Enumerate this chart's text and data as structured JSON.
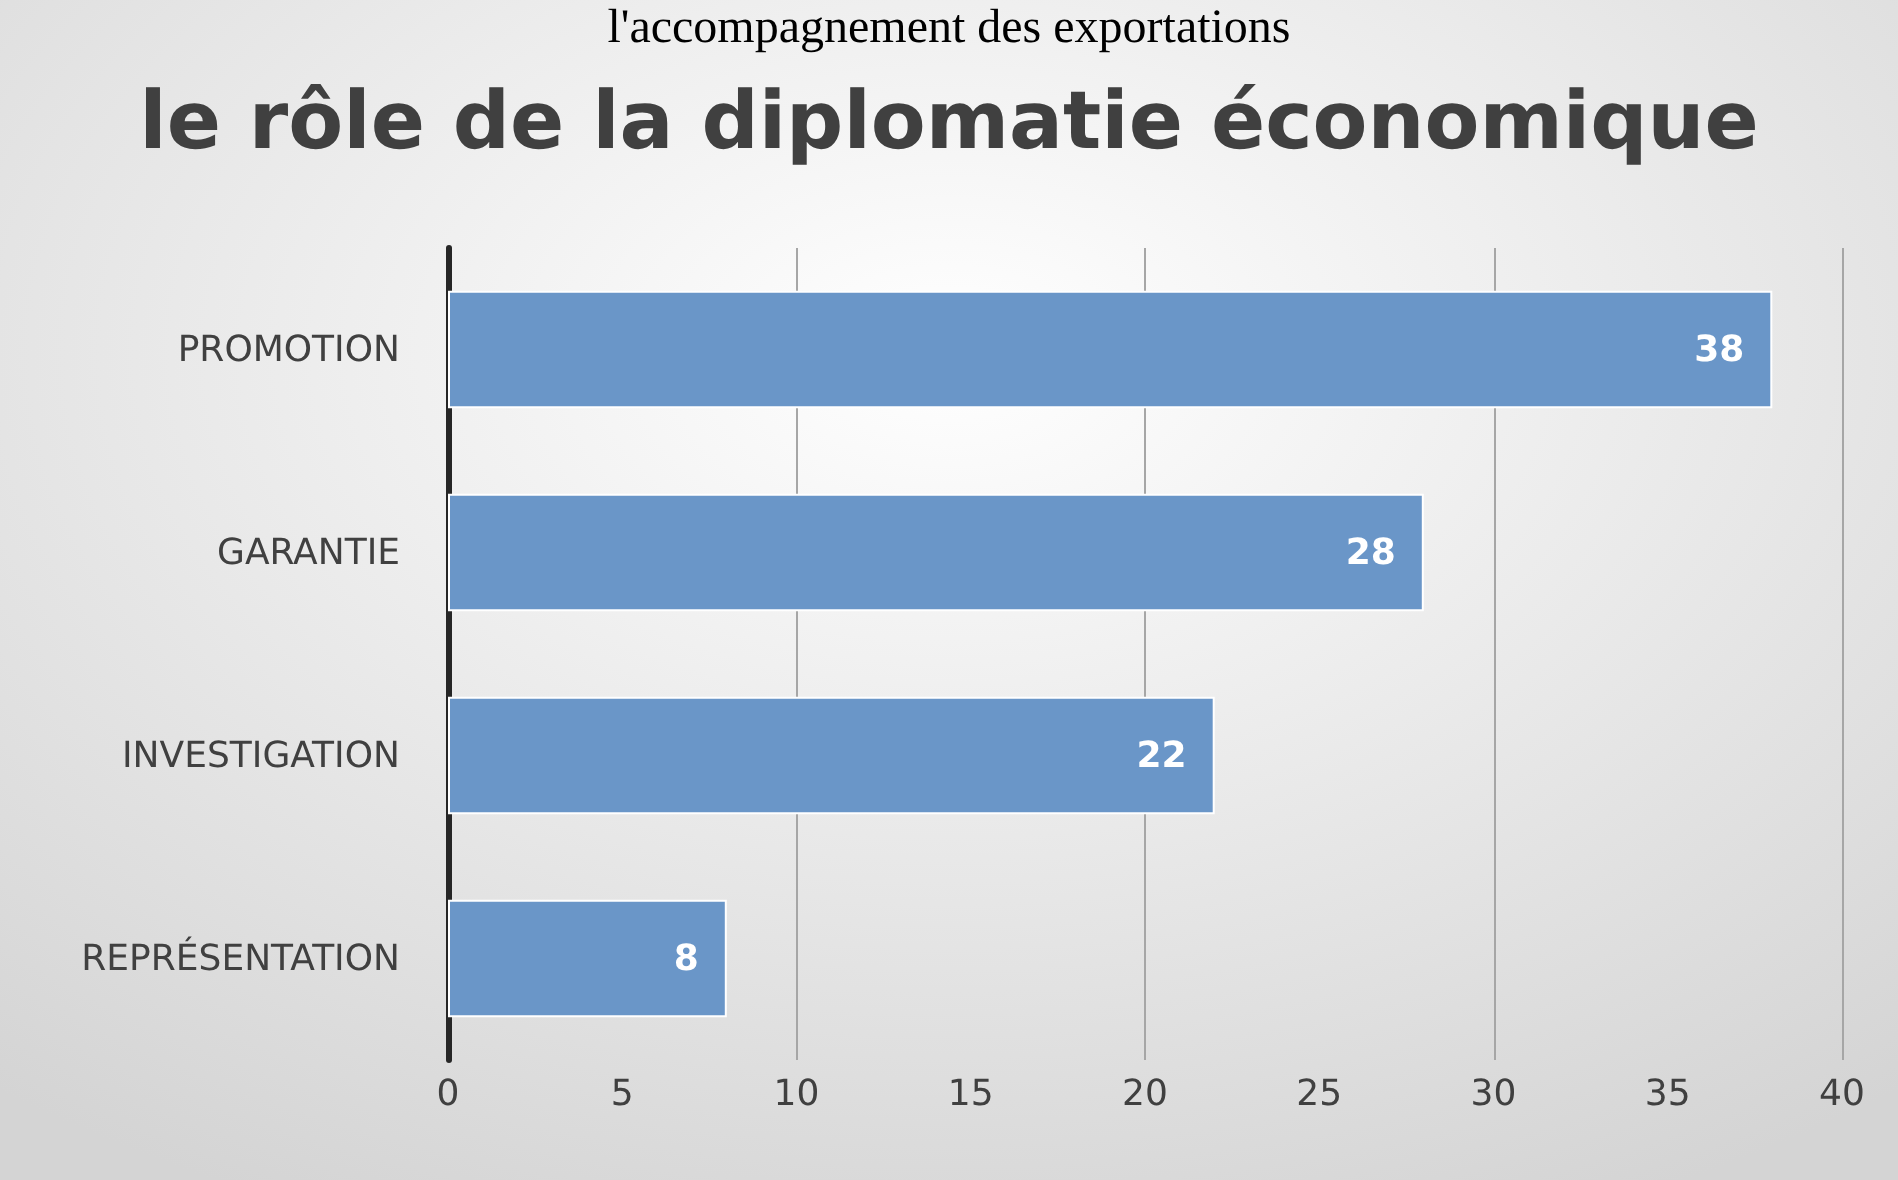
{
  "chart_data": {
    "type": "bar",
    "orientation": "horizontal",
    "title": "le rôle de la diplomatie économique",
    "annotations": [
      "l'accompagnement des exportations"
    ],
    "categories": [
      "PROMOTION",
      "GARANTIE",
      "INVESTIGATION",
      "REPRÉSENTATION"
    ],
    "values": [
      38,
      28,
      22,
      8
    ],
    "color": "#6a96c8",
    "xlim": [
      0,
      40
    ],
    "xticks": [
      0,
      5,
      10,
      15,
      20,
      25,
      30,
      35,
      40
    ],
    "grid": "x",
    "data_labels": true
  }
}
